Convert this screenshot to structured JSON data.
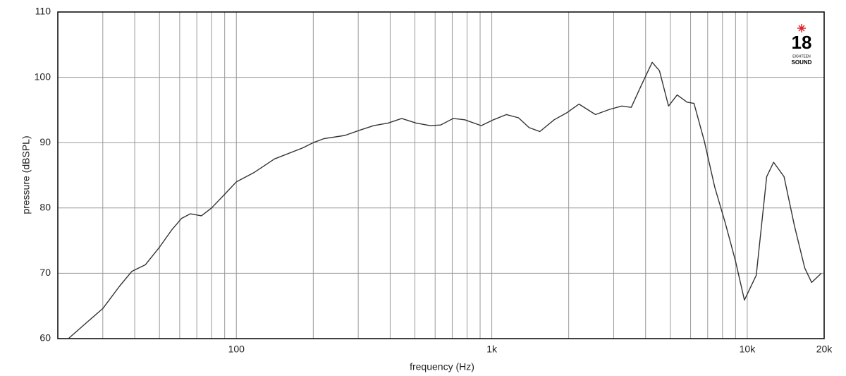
{
  "chart_data": {
    "type": "line",
    "xlabel": "frequency (Hz)",
    "ylabel": "pressure (dBSPL)",
    "xscale": "log",
    "xlim": [
      20,
      20000
    ],
    "ylim": [
      60,
      110
    ],
    "xticks": [
      100,
      {
        "value": 1000,
        "label": "1k"
      },
      {
        "value": 10000,
        "label": "10k"
      },
      {
        "value": 20000,
        "label": "20k"
      }
    ],
    "xminorticks": [
      30,
      40,
      50,
      60,
      70,
      80,
      90,
      200,
      300,
      400,
      500,
      600,
      700,
      800,
      900,
      2000,
      3000,
      4000,
      5000,
      6000,
      7000,
      8000,
      9000
    ],
    "yticks": [
      60,
      70,
      80,
      90,
      100,
      110
    ],
    "grid": true,
    "color": "#333333",
    "annotations": [
      "18",
      "EIGHTEEN",
      "SOUND"
    ],
    "x": [
      22,
      25.5,
      30,
      35,
      39,
      44,
      50,
      56,
      61,
      66,
      73,
      80,
      90,
      100,
      117,
      141,
      182,
      200,
      220,
      266,
      304,
      345,
      393,
      444,
      505,
      574,
      630,
      707,
      784,
      909,
      1015,
      1141,
      1272,
      1400,
      1542,
      1754,
      1971,
      2195,
      2545,
      2896,
      3231,
      3514,
      3861,
      4246,
      4532,
      4921,
      5315,
      5811,
      6187,
      6795,
      7460,
      8192,
      8993,
      9749,
      10845,
      11912,
      12680,
      13931,
      15295,
      16794,
      17875,
      19500
    ],
    "values": [
      60,
      62.2,
      64.6,
      68.1,
      70.3,
      71.3,
      74,
      76.7,
      78.4,
      79.1,
      78.8,
      80,
      82.1,
      84,
      85.4,
      87.5,
      89.2,
      90,
      90.6,
      91.1,
      91.9,
      92.6,
      93,
      93.7,
      93,
      92.6,
      92.7,
      93.7,
      93.5,
      92.6,
      93.5,
      94.3,
      93.8,
      92.3,
      91.7,
      93.5,
      94.6,
      95.9,
      94.3,
      95.1,
      95.6,
      95.4,
      98.9,
      102.3,
      101,
      95.6,
      97.3,
      96.2,
      96,
      90.2,
      83.2,
      77.8,
      71.9,
      65.9,
      69.7,
      84.8,
      87,
      84.8,
      77.3,
      70.8,
      68.6,
      70
    ]
  }
}
